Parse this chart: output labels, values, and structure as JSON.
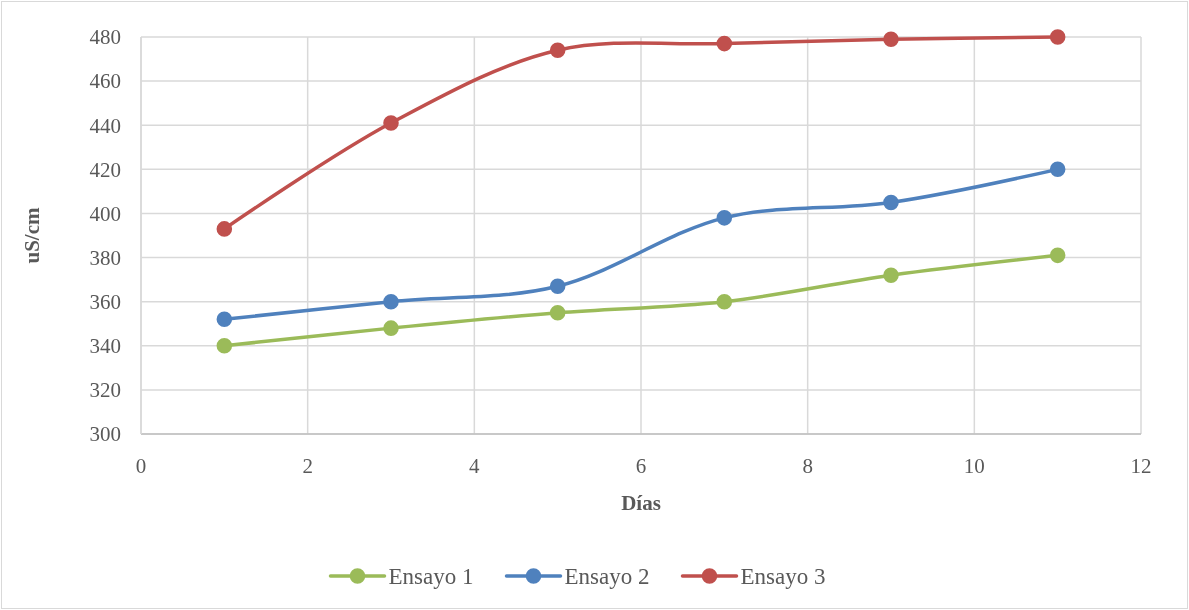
{
  "chart_data": {
    "type": "line",
    "xlabel": "Días",
    "ylabel": "uS/cm",
    "xlim": [
      0,
      12
    ],
    "xticks": [
      0,
      2,
      4,
      6,
      8,
      10,
      12
    ],
    "ylim": [
      300,
      480
    ],
    "yticks": [
      300,
      320,
      340,
      360,
      380,
      400,
      420,
      440,
      460,
      480
    ],
    "grid": true,
    "legend": "bottom",
    "marker": "circle",
    "x": [
      1,
      3,
      5,
      7,
      9,
      11
    ],
    "series": [
      {
        "name": "Ensayo 1",
        "color": "#9bbb59",
        "values": [
          340,
          348,
          355,
          360,
          372,
          381
        ]
      },
      {
        "name": "Ensayo 2",
        "color": "#4f81bd",
        "values": [
          352,
          360,
          367,
          398,
          405,
          420
        ]
      },
      {
        "name": "Ensayo 3",
        "color": "#c0504d",
        "values": [
          393,
          441,
          474,
          477,
          479,
          480
        ]
      }
    ]
  }
}
